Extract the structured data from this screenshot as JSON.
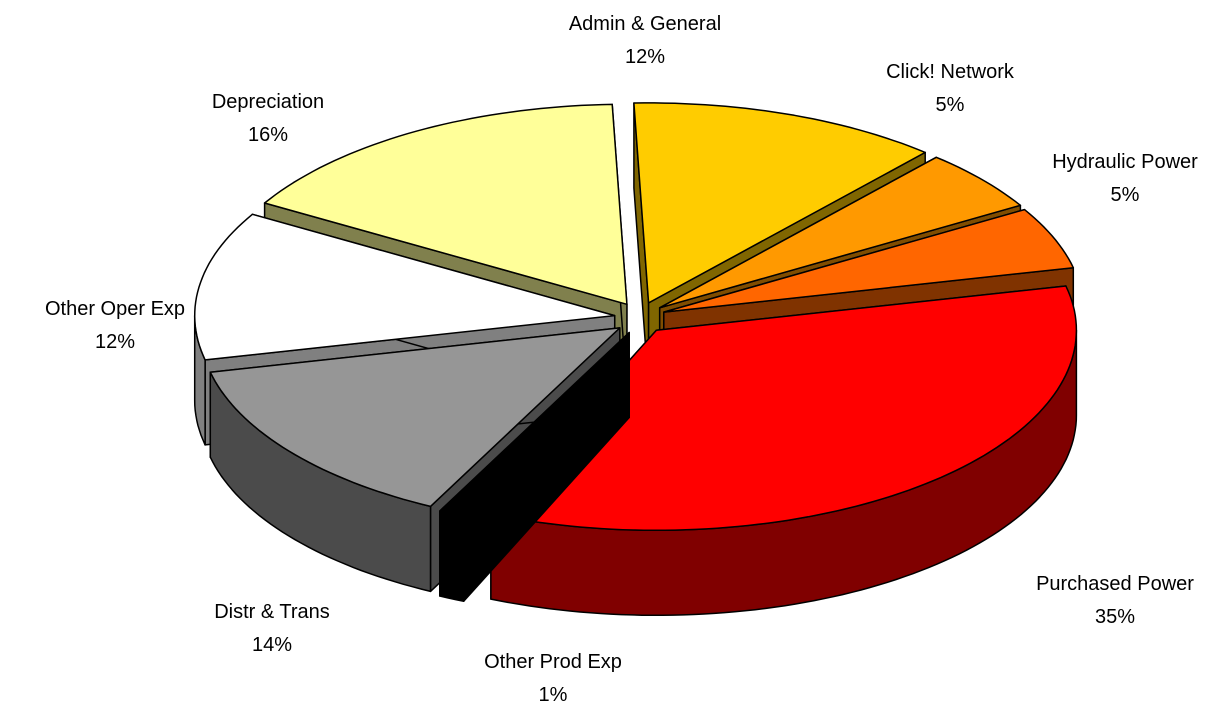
{
  "chart_data": {
    "type": "pie",
    "categories": [
      "Admin & General",
      "Click! Network",
      "Hydraulic Power",
      "Purchased Power",
      "Other Prod Exp",
      "Distr & Trans",
      "Other Oper Exp",
      "Depreciation"
    ],
    "values": [
      12,
      5,
      5,
      35,
      1,
      14,
      12,
      16
    ],
    "value_labels": [
      "12%",
      "5%",
      "5%",
      "35%",
      "1%",
      "14%",
      "12%",
      "16%"
    ],
    "colors": [
      "#FFCC00",
      "#FF9900",
      "#FF6600",
      "#FF0000",
      "#000000",
      "#969696",
      "#FFFFFF",
      "#FFFF99"
    ]
  }
}
